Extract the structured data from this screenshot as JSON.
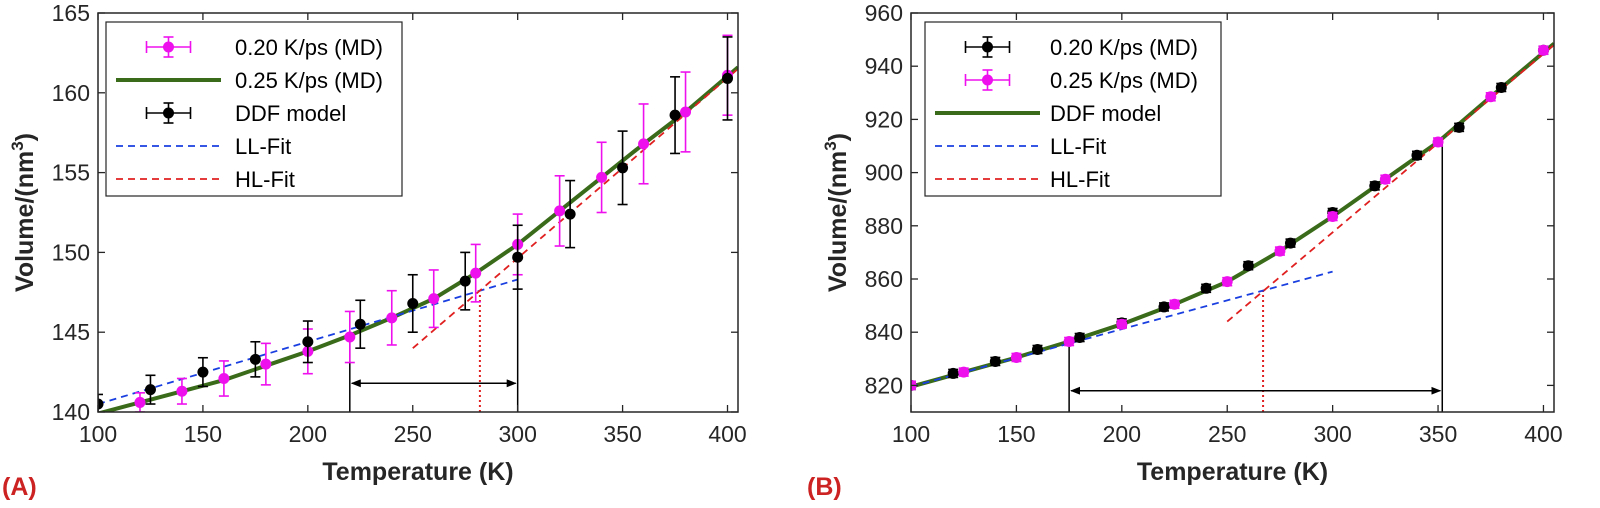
{
  "chart_data": [
    {
      "type": "line",
      "panel_label": "(A)",
      "xlabel": "Temperature (K)",
      "ylabel_main": "Volume/(nm",
      "ylabel_sup": "3",
      "ylabel_close": ")",
      "xlim": [
        100,
        405
      ],
      "ylim": [
        140,
        165
      ],
      "xticks": [
        "100",
        "150",
        "200",
        "250",
        "300",
        "350",
        "400"
      ],
      "yticks": [
        "140",
        "145",
        "150",
        "155",
        "160",
        "165"
      ],
      "legend": [
        {
          "label": "0.20 K/ps (MD)",
          "style": "errorbar",
          "color": "#ee11ee"
        },
        {
          "label": "0.25 K/ps (MD)",
          "style": "line",
          "color": "#3a6b1a"
        },
        {
          "label": "DDF model",
          "style": "errorbar",
          "color": "#000000"
        },
        {
          "label": "LL-Fit",
          "style": "dashed",
          "color": "#1a3fe0"
        },
        {
          "label": "HL-Fit",
          "style": "dashed",
          "color": "#e02020"
        }
      ],
      "series": [
        {
          "name": "0.20 K/ps (MD)",
          "color": "#ee11ee",
          "x": [
            120,
            140,
            160,
            180,
            200,
            220,
            240,
            260,
            280,
            300,
            320,
            340,
            360,
            380,
            400
          ],
          "y": [
            140.6,
            141.3,
            142.1,
            143.0,
            143.8,
            144.7,
            145.9,
            147.1,
            148.7,
            150.5,
            152.6,
            154.7,
            156.8,
            158.8,
            161.1
          ],
          "err": [
            0.6,
            0.8,
            1.1,
            1.3,
            1.4,
            1.6,
            1.7,
            1.8,
            1.8,
            1.9,
            2.2,
            2.2,
            2.5,
            2.5,
            2.5
          ]
        },
        {
          "name": "0.25 K/ps (MD)",
          "color": "#3a6b1a",
          "x": [
            100,
            120,
            140,
            160,
            180,
            200,
            220,
            240,
            260,
            280,
            300,
            320,
            340,
            360,
            380,
            405
          ],
          "y": [
            139.9,
            140.6,
            141.3,
            142.0,
            142.9,
            143.8,
            144.8,
            145.9,
            147.1,
            148.7,
            150.5,
            152.6,
            154.7,
            156.8,
            158.8,
            161.6
          ]
        },
        {
          "name": "DDF model",
          "color": "#000000",
          "x": [
            100,
            125,
            150,
            175,
            200,
            225,
            250,
            275,
            300,
            325,
            350,
            375,
            400
          ],
          "y": [
            140.5,
            141.4,
            142.5,
            143.3,
            144.4,
            145.5,
            146.8,
            148.2,
            149.7,
            152.4,
            155.3,
            158.6,
            160.9
          ],
          "err": [
            0.6,
            0.9,
            0.9,
            1.1,
            1.3,
            1.5,
            1.8,
            1.8,
            2.0,
            2.1,
            2.3,
            2.4,
            2.6
          ]
        },
        {
          "name": "LL-Fit",
          "color": "#1a3fe0",
          "dashed": true,
          "x": [
            100,
            300
          ],
          "y": [
            140.5,
            148.3
          ]
        },
        {
          "name": "HL-Fit",
          "color": "#e02020",
          "dashed": true,
          "x": [
            250,
            405
          ],
          "y": [
            144.0,
            161.5
          ]
        }
      ],
      "annotations": [
        {
          "type": "vline",
          "x": 220,
          "y0": 140,
          "y1": 144.7,
          "color": "#000000"
        },
        {
          "type": "vline",
          "x": 300,
          "y0": 140,
          "y1": 150.5,
          "color": "#000000"
        },
        {
          "type": "vline",
          "x": 282,
          "y0": 140,
          "y1": 147.5,
          "color": "#e02020",
          "dotted": true
        },
        {
          "type": "double-arrow",
          "x0": 220,
          "x1": 300,
          "y": 141.8,
          "color": "#000000"
        }
      ]
    },
    {
      "type": "line",
      "panel_label": "(B)",
      "xlabel": "Temperature (K)",
      "ylabel_main": "Volume/(nm",
      "ylabel_sup": "3",
      "ylabel_close": ")",
      "xlim": [
        100,
        405
      ],
      "ylim": [
        810,
        960
      ],
      "xticks": [
        "100",
        "150",
        "200",
        "250",
        "300",
        "350",
        "400"
      ],
      "yticks": [
        "820",
        "840",
        "860",
        "880",
        "900",
        "920",
        "940",
        "960"
      ],
      "legend": [
        {
          "label": "0.20 K/ps (MD)",
          "style": "errorbar",
          "color": "#000000"
        },
        {
          "label": "0.25 K/ps (MD)",
          "style": "errorbar",
          "color": "#ee11ee"
        },
        {
          "label": "DDF model",
          "style": "line",
          "color": "#3a6b1a"
        },
        {
          "label": "LL-Fit",
          "style": "dashed",
          "color": "#1a3fe0"
        },
        {
          "label": "HL-Fit",
          "style": "dashed",
          "color": "#e02020"
        }
      ],
      "series": [
        {
          "name": "0.20 K/ps (MD)",
          "color": "#000000",
          "x": [
            100,
            120,
            140,
            160,
            180,
            200,
            220,
            240,
            260,
            280,
            300,
            320,
            340,
            360,
            380,
            400
          ],
          "y": [
            820,
            824.5,
            829,
            833.5,
            838,
            843.5,
            849.5,
            856.5,
            865,
            873.5,
            885,
            895,
            906.5,
            917,
            932,
            946
          ],
          "err": [
            1.5,
            1.5,
            1.5,
            1.5,
            1.5,
            1.5,
            1.5,
            1.5,
            1.5,
            1.5,
            1.5,
            1.5,
            1.5,
            1.5,
            1.5,
            1.5
          ]
        },
        {
          "name": "0.25 K/ps (MD)",
          "color": "#ee11ee",
          "x": [
            100,
            125,
            150,
            175,
            200,
            225,
            250,
            275,
            300,
            325,
            350,
            375,
            400
          ],
          "y": [
            820,
            825,
            830.5,
            836.5,
            843,
            850.5,
            859,
            870.5,
            883.5,
            897.5,
            911.5,
            928.5,
            946
          ],
          "err": [
            1.5,
            1.5,
            1.5,
            1.5,
            1.5,
            1.5,
            1.5,
            1.5,
            1.5,
            1.5,
            1.5,
            1.5,
            1.5
          ]
        },
        {
          "name": "DDF model",
          "color": "#3a6b1a",
          "x": [
            100,
            125,
            150,
            175,
            200,
            225,
            250,
            275,
            300,
            325,
            350,
            375,
            405
          ],
          "y": [
            819.5,
            825,
            830.5,
            836.5,
            843,
            850.5,
            859,
            870.5,
            883.5,
            897.5,
            911.5,
            928.5,
            948.5
          ]
        },
        {
          "name": "LL-Fit",
          "color": "#1a3fe0",
          "dashed": true,
          "x": [
            100,
            300
          ],
          "y": [
            819.5,
            862.8
          ]
        },
        {
          "name": "HL-Fit",
          "color": "#e02020",
          "dashed": true,
          "x": [
            250,
            405
          ],
          "y": [
            844,
            948
          ]
        }
      ],
      "annotations": [
        {
          "type": "vline",
          "x": 175,
          "y0": 810,
          "y1": 836.5,
          "color": "#000000"
        },
        {
          "type": "vline",
          "x": 352,
          "y0": 810,
          "y1": 911.5,
          "color": "#000000"
        },
        {
          "type": "vline",
          "x": 267,
          "y0": 810,
          "y1": 855.5,
          "color": "#e02020",
          "dotted": true
        },
        {
          "type": "double-arrow",
          "x0": 175,
          "x1": 352,
          "y": 818,
          "color": "#000000"
        }
      ]
    }
  ]
}
